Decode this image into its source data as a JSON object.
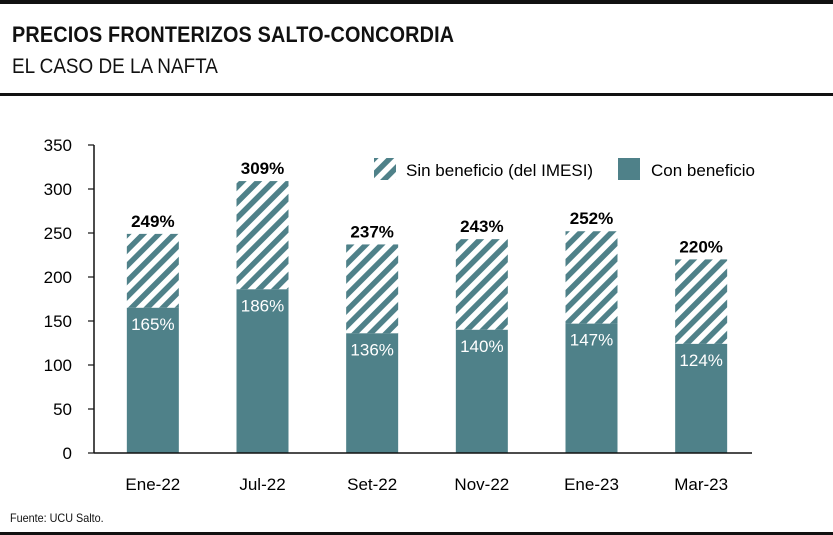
{
  "header": {
    "title": "PRECIOS FRONTERIZOS SALTO-CONCORDIA",
    "subtitle": "EL CASO DE LA NAFTA"
  },
  "footer": {
    "source": "Fuente: UCU Salto."
  },
  "colors": {
    "bar": "#4f8189",
    "hatch": "#4f8189",
    "text": "#111111",
    "axis": "#111111"
  },
  "chart_data": {
    "type": "bar",
    "stacked": true,
    "categories": [
      "Ene-22",
      "Jul-22",
      "Set-22",
      "Nov-22",
      "Ene-23",
      "Mar-23"
    ],
    "series": [
      {
        "name": "Con beneficio",
        "values": [
          165,
          186,
          136,
          140,
          147,
          124
        ],
        "labels": [
          "165%",
          "186%",
          "136%",
          "140%",
          "147%",
          "124%"
        ],
        "fill": "solid"
      },
      {
        "name": "Sin beneficio (del IMESI)",
        "values": [
          84,
          123,
          101,
          103,
          105,
          96
        ],
        "totals": [
          "249%",
          "309%",
          "237%",
          "243%",
          "252%",
          "220%"
        ],
        "fill": "hatched"
      }
    ],
    "title": "",
    "xlabel": "",
    "ylabel": "",
    "ylim": [
      0,
      350
    ],
    "yticks": [
      "0",
      "50",
      "100",
      "150",
      "200",
      "250",
      "300",
      "350"
    ],
    "legend": "top-right",
    "grid": false
  }
}
